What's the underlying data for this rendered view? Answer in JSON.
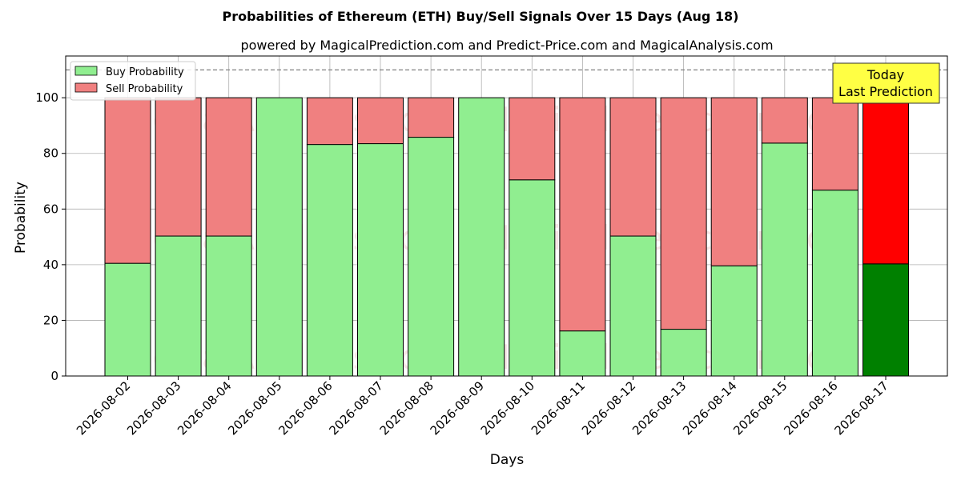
{
  "chart_data": {
    "type": "bar",
    "stacked": true,
    "title": "Probabilities of Ethereum (ETH) Buy/Sell Signals Over 15 Days (Aug 18)",
    "subtitle": "powered by MagicalPrediction.com and Predict-Price.com and MagicalAnalysis.com",
    "xlabel": "Days",
    "ylabel": "Probability",
    "ylim": [
      0,
      115
    ],
    "yticks": [
      "0",
      "20",
      "40",
      "60",
      "80",
      "100"
    ],
    "reference_line": 110,
    "grid": true,
    "legend_position": "top-left",
    "categories": [
      "2026-08-02",
      "2026-08-03",
      "2026-08-04",
      "2026-08-05",
      "2026-08-06",
      "2026-08-07",
      "2026-08-08",
      "2026-08-09",
      "2026-08-10",
      "2026-08-11",
      "2026-08-12",
      "2026-08-13",
      "2026-08-14",
      "2026-08-15",
      "2026-08-16",
      "2026-08-17"
    ],
    "series": [
      {
        "name": "Buy Probability",
        "color": "#90ee90",
        "values": [
          40.5,
          50.3,
          50.3,
          100,
          83.2,
          83.5,
          85.8,
          100,
          70.5,
          16.2,
          50.3,
          16.8,
          39.6,
          83.7,
          66.8,
          40.3
        ]
      },
      {
        "name": "Sell Probability",
        "color": "#f08080",
        "values": [
          59.5,
          49.7,
          49.7,
          0,
          16.8,
          16.5,
          14.2,
          0,
          29.5,
          83.8,
          49.7,
          83.2,
          60.4,
          16.3,
          33.2,
          59.7
        ]
      }
    ],
    "highlight": {
      "index": 15,
      "buy_color": "#008000",
      "sell_color": "#ff0000"
    },
    "annotation": {
      "line1": "Today",
      "line2": "Last Prediction"
    },
    "watermarks": [
      "MagicalAnalysis.com",
      "MagicalPrediction.com"
    ]
  }
}
